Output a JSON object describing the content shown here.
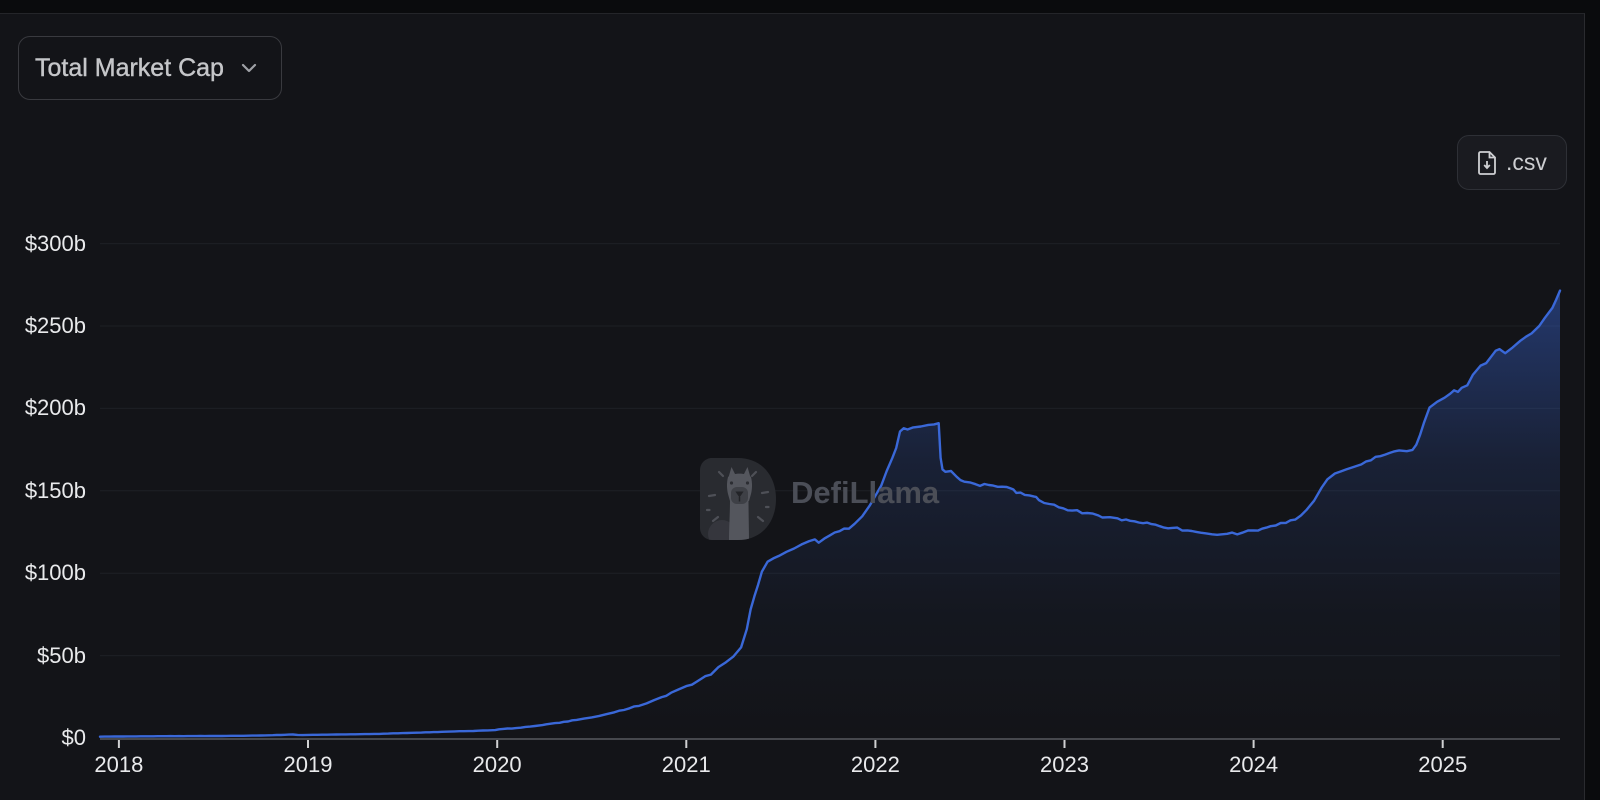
{
  "controls": {
    "metric_dropdown": {
      "label": "Total Market Cap"
    },
    "csv_button": {
      "label": ".csv"
    }
  },
  "watermark": {
    "text": "DefiLlama"
  },
  "chart_data": {
    "type": "area",
    "title": "Total Market Cap",
    "unit": "USD billions",
    "x_range": [
      2017.9,
      2025.62
    ],
    "ylim": [
      0,
      303
    ],
    "grid": "horizontal-faint",
    "legend": "none",
    "line_color": "#3a68d8",
    "area_gradient": [
      {
        "offset": 0,
        "color": "rgba(56,100,210,0.46)"
      },
      {
        "offset": 0.38,
        "color": "rgba(56,100,210,0.16)"
      },
      {
        "offset": 0.72,
        "color": "rgba(56,100,210,0.04)"
      },
      {
        "offset": 1,
        "color": "rgba(56,100,210,0.0)"
      }
    ],
    "y_ticks": [
      {
        "label": "$0",
        "value": 0
      },
      {
        "label": "$50b",
        "value": 50
      },
      {
        "label": "$100b",
        "value": 100
      },
      {
        "label": "$150b",
        "value": 150
      },
      {
        "label": "$200b",
        "value": 200
      },
      {
        "label": "$250b",
        "value": 250
      },
      {
        "label": "$300b",
        "value": 300
      }
    ],
    "x_ticks": [
      {
        "label": "2018",
        "value": 2018
      },
      {
        "label": "2019",
        "value": 2019
      },
      {
        "label": "2020",
        "value": 2020
      },
      {
        "label": "2021",
        "value": 2021
      },
      {
        "label": "2022",
        "value": 2022
      },
      {
        "label": "2023",
        "value": 2023
      },
      {
        "label": "2024",
        "value": 2024
      },
      {
        "label": "2025",
        "value": 2025
      }
    ],
    "points": [
      [
        2017.9,
        0.8
      ],
      [
        2018.0,
        0.9
      ],
      [
        2018.25,
        1.1
      ],
      [
        2018.5,
        1.2
      ],
      [
        2018.75,
        1.5
      ],
      [
        2018.92,
        2.1
      ],
      [
        2018.97,
        1.75
      ],
      [
        2019.0,
        1.9
      ],
      [
        2019.1,
        2.0
      ],
      [
        2019.2,
        2.2
      ],
      [
        2019.3,
        2.35
      ],
      [
        2019.4,
        2.6
      ],
      [
        2019.5,
        3.0
      ],
      [
        2019.6,
        3.3
      ],
      [
        2019.75,
        3.9
      ],
      [
        2019.85,
        4.2
      ],
      [
        2019.95,
        4.6
      ],
      [
        2019.99,
        4.8
      ],
      [
        2020.01,
        5.3
      ],
      [
        2020.1,
        6.0
      ],
      [
        2020.2,
        7.3
      ],
      [
        2020.24,
        7.8
      ],
      [
        2020.26,
        8.3
      ],
      [
        2020.33,
        9.2
      ],
      [
        2020.42,
        11.0
      ],
      [
        2020.46,
        11.8
      ],
      [
        2020.5,
        12.5
      ],
      [
        2020.54,
        13.4
      ],
      [
        2020.58,
        14.5
      ],
      [
        2020.62,
        15.6
      ],
      [
        2020.67,
        17.0
      ],
      [
        2020.7,
        18.0
      ],
      [
        2020.75,
        19.5
      ],
      [
        2020.79,
        21.0
      ],
      [
        2020.83,
        23.0
      ],
      [
        2020.87,
        24.8
      ],
      [
        2020.92,
        27.5
      ],
      [
        2020.96,
        29.5
      ],
      [
        2021.0,
        31.5
      ],
      [
        2021.06,
        34.5
      ],
      [
        2021.1,
        37.5
      ],
      [
        2021.13,
        38.5
      ],
      [
        2021.17,
        43.0
      ],
      [
        2021.21,
        46.0
      ],
      [
        2021.25,
        49.5
      ],
      [
        2021.29,
        55.0
      ],
      [
        2021.32,
        66.0
      ],
      [
        2021.34,
        78.0
      ],
      [
        2021.36,
        86.0
      ],
      [
        2021.38,
        93.0
      ],
      [
        2021.4,
        101.0
      ],
      [
        2021.43,
        107.0
      ],
      [
        2021.46,
        109.0
      ],
      [
        2021.49,
        110.5
      ],
      [
        2021.53,
        113.0
      ],
      [
        2021.57,
        115.0
      ],
      [
        2021.61,
        117.5
      ],
      [
        2021.65,
        119.5
      ],
      [
        2021.68,
        120.5
      ],
      [
        2021.7,
        118.5
      ],
      [
        2021.73,
        121.0
      ],
      [
        2021.76,
        123.0
      ],
      [
        2021.81,
        125.5
      ],
      [
        2021.86,
        127.0
      ],
      [
        2021.89,
        130.0
      ],
      [
        2021.93,
        134.5
      ],
      [
        2021.97,
        141.0
      ],
      [
        2022.0,
        147.0
      ],
      [
        2022.03,
        153.0
      ],
      [
        2022.06,
        162.0
      ],
      [
        2022.09,
        170.0
      ],
      [
        2022.11,
        176.0
      ],
      [
        2022.13,
        186.0
      ],
      [
        2022.15,
        188.0
      ],
      [
        2022.17,
        187.2
      ],
      [
        2022.2,
        188.5
      ],
      [
        2022.24,
        189.0
      ],
      [
        2022.28,
        190.0
      ],
      [
        2022.31,
        190.3
      ],
      [
        2022.335,
        191.0
      ],
      [
        2022.345,
        170.0
      ],
      [
        2022.355,
        163.0
      ],
      [
        2022.37,
        161.5
      ],
      [
        2022.4,
        162.0
      ],
      [
        2022.43,
        158.5
      ],
      [
        2022.45,
        156.5
      ],
      [
        2022.47,
        155.5
      ],
      [
        2022.53,
        154.0
      ],
      [
        2022.6,
        153.5
      ],
      [
        2022.67,
        152.5
      ],
      [
        2022.72,
        151.2
      ],
      [
        2022.73,
        150.8
      ],
      [
        2022.745,
        148.7
      ],
      [
        2022.79,
        147.5
      ],
      [
        2022.84,
        146.5
      ],
      [
        2022.85,
        146.3
      ],
      [
        2022.865,
        144.3
      ],
      [
        2022.92,
        142.0
      ],
      [
        2022.97,
        140.0
      ],
      [
        2023.04,
        138.0
      ],
      [
        2023.12,
        136.5
      ],
      [
        2023.18,
        135.0
      ],
      [
        2023.2,
        133.8
      ],
      [
        2023.24,
        134.0
      ],
      [
        2023.28,
        133.3
      ],
      [
        2023.37,
        131.5
      ],
      [
        2023.46,
        129.8
      ],
      [
        2023.57,
        127.5
      ],
      [
        2023.65,
        126.0
      ],
      [
        2023.72,
        124.6
      ],
      [
        2023.78,
        123.6
      ],
      [
        2023.86,
        123.9
      ],
      [
        2023.94,
        124.6
      ],
      [
        2024.0,
        126.0
      ],
      [
        2024.09,
        128.5
      ],
      [
        2024.17,
        130.5
      ],
      [
        2024.22,
        132.5
      ],
      [
        2024.25,
        135.0
      ],
      [
        2024.28,
        138.5
      ],
      [
        2024.32,
        144.0
      ],
      [
        2024.36,
        152.0
      ],
      [
        2024.39,
        157.0
      ],
      [
        2024.43,
        160.5
      ],
      [
        2024.49,
        163.0
      ],
      [
        2024.53,
        164.5
      ],
      [
        2024.57,
        166.0
      ],
      [
        2024.62,
        168.5
      ],
      [
        2024.67,
        171.0
      ],
      [
        2024.72,
        173.0
      ],
      [
        2024.74,
        173.8
      ],
      [
        2024.77,
        174.5
      ],
      [
        2024.81,
        174.0
      ],
      [
        2024.84,
        174.8
      ],
      [
        2024.86,
        178.0
      ],
      [
        2024.88,
        184.0
      ],
      [
        2024.9,
        191.0
      ],
      [
        2024.93,
        200.5
      ],
      [
        2024.97,
        204.0
      ],
      [
        2025.01,
        206.5
      ],
      [
        2025.04,
        209.0
      ],
      [
        2025.06,
        211.0
      ],
      [
        2025.08,
        210.0
      ],
      [
        2025.1,
        212.5
      ],
      [
        2025.13,
        214.0
      ],
      [
        2025.16,
        220.5
      ],
      [
        2025.2,
        226.0
      ],
      [
        2025.23,
        227.5
      ],
      [
        2025.26,
        232.0
      ],
      [
        2025.28,
        235.0
      ],
      [
        2025.3,
        236.0
      ],
      [
        2025.33,
        233.5
      ],
      [
        2025.37,
        237.0
      ],
      [
        2025.41,
        241.0
      ],
      [
        2025.44,
        243.5
      ],
      [
        2025.47,
        245.5
      ],
      [
        2025.51,
        250.0
      ],
      [
        2025.54,
        255.0
      ],
      [
        2025.58,
        261.0
      ],
      [
        2025.6,
        266.0
      ],
      [
        2025.62,
        271.5
      ]
    ],
    "noise_amplitude": 1.8
  }
}
